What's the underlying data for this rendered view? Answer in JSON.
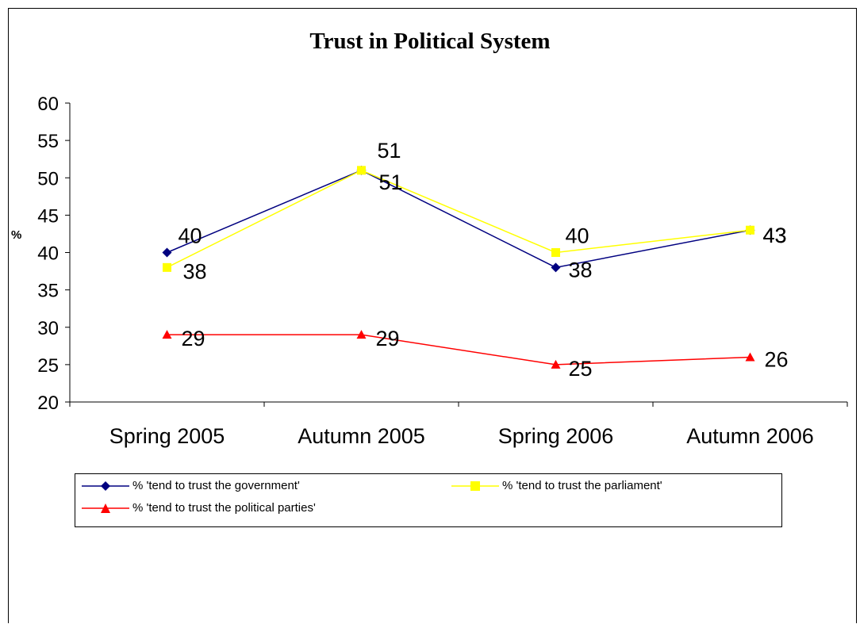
{
  "chart_data": {
    "type": "line",
    "title": "Trust in Political System",
    "xlabel": "",
    "ylabel": "%",
    "categories": [
      "Spring 2005",
      "Autumn 2005",
      "Spring 2006",
      "Autumn 2006"
    ],
    "ylim": [
      20,
      60
    ],
    "yticks": [
      "20",
      "25",
      "30",
      "35",
      "40",
      "45",
      "50",
      "55",
      "60"
    ],
    "grid": false,
    "legend_position": "bottom",
    "series": [
      {
        "name": "% 'tend to trust the government'",
        "values": [
          40,
          51,
          38,
          43
        ],
        "labels": [
          "40",
          "51",
          "38",
          "43"
        ],
        "color": "#000080",
        "marker": "diamond"
      },
      {
        "name": "% 'tend to trust the parliament'",
        "values": [
          38,
          51,
          40,
          43
        ],
        "labels": [
          "38",
          "51",
          "40",
          "43"
        ],
        "color": "#FFFF00",
        "marker": "square"
      },
      {
        "name": "% 'tend to trust the political parties'",
        "values": [
          29,
          29,
          25,
          26
        ],
        "labels": [
          "29",
          "29",
          "25",
          "26"
        ],
        "color": "#FF0000",
        "marker": "triangle"
      }
    ]
  }
}
